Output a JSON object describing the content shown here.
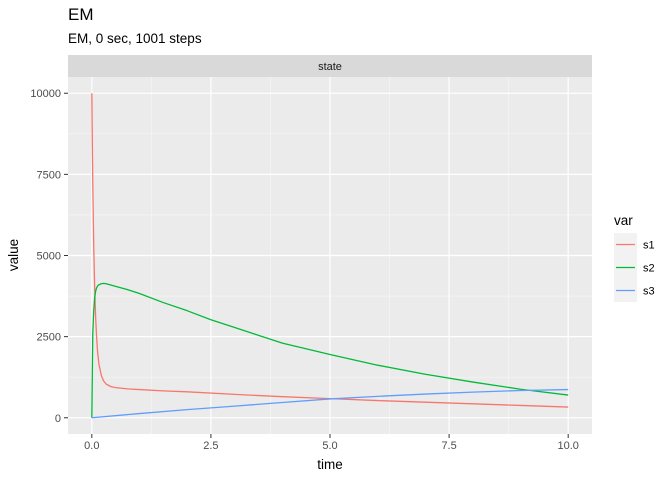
{
  "title": "EM",
  "subtitle": "EM, 0 sec, 1001 steps",
  "chart_data": {
    "type": "line",
    "panel_strip": "state",
    "xlabel": "time",
    "ylabel": "value",
    "xlim": [
      -0.5,
      10.5
    ],
    "ylim": [
      -500,
      10500
    ],
    "x_ticks": [
      0,
      2.5,
      5,
      7.5,
      10
    ],
    "x_tick_labels": [
      "0.0",
      "2.5",
      "5.0",
      "7.5",
      "10.0"
    ],
    "y_ticks": [
      0,
      2500,
      5000,
      7500,
      10000
    ],
    "y_tick_labels": [
      "0",
      "2500",
      "5000",
      "7500",
      "10000"
    ],
    "grid": true,
    "legend": {
      "title": "var",
      "position": "right"
    },
    "series": [
      {
        "name": "s1",
        "color": "#F8766D",
        "x": [
          0,
          0.02,
          0.04,
          0.06,
          0.08,
          0.1,
          0.12,
          0.15,
          0.2,
          0.25,
          0.3,
          0.4,
          0.5,
          0.75,
          1,
          1.5,
          2,
          3,
          4,
          5,
          6,
          7,
          8,
          9,
          10
        ],
        "y": [
          10000,
          7200,
          5300,
          4000,
          3100,
          2500,
          2050,
          1650,
          1300,
          1130,
          1040,
          960,
          930,
          890,
          870,
          830,
          800,
          720,
          650,
          590,
          530,
          480,
          430,
          380,
          330
        ]
      },
      {
        "name": "s2",
        "color": "#00BA38",
        "x": [
          0,
          0.02,
          0.04,
          0.06,
          0.08,
          0.1,
          0.12,
          0.15,
          0.2,
          0.25,
          0.3,
          0.4,
          0.5,
          0.75,
          1,
          1.5,
          2,
          2.5,
          3,
          3.5,
          4,
          5,
          6,
          7,
          8,
          9,
          10
        ],
        "y": [
          0,
          2600,
          3300,
          3700,
          3900,
          4000,
          4060,
          4100,
          4130,
          4140,
          4130,
          4090,
          4050,
          3950,
          3830,
          3550,
          3300,
          3020,
          2780,
          2540,
          2300,
          1950,
          1620,
          1340,
          1100,
          880,
          700
        ]
      },
      {
        "name": "s3",
        "color": "#619CFF",
        "x": [
          0,
          1,
          2,
          3,
          4,
          5,
          6,
          7,
          8,
          9,
          10
        ],
        "y": [
          0,
          130,
          250,
          360,
          470,
          580,
          660,
          730,
          790,
          840,
          870
        ]
      }
    ]
  }
}
